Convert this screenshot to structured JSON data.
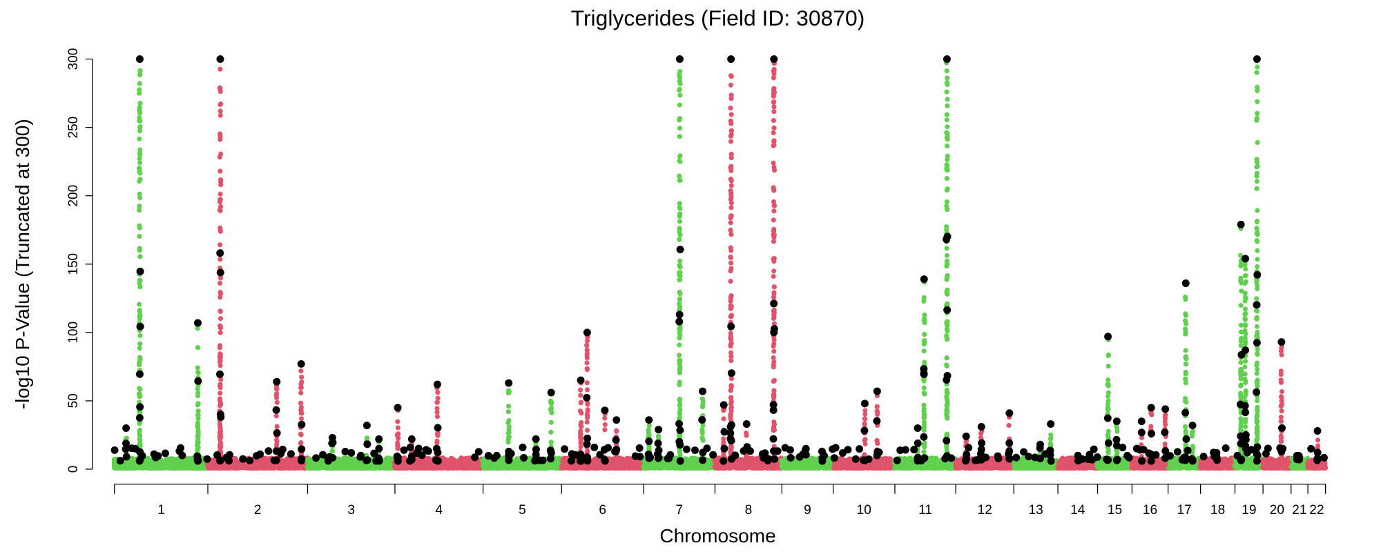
{
  "chart_data": {
    "type": "scatter",
    "subtype": "manhattan",
    "title": "Triglycerides (Field ID: 30870)",
    "xlabel": "Chromosome",
    "ylabel": "-log10 P-Value (Truncated at 300)",
    "ylim": [
      0,
      300
    ],
    "yticks": [
      0,
      50,
      100,
      150,
      200,
      250,
      300
    ],
    "grid": false,
    "colors": {
      "odd": "#61D04F",
      "even": "#DF536B",
      "lead": "#000000"
    },
    "chromosomes": [
      {
        "label": "1",
        "length": 233
      },
      {
        "label": "2",
        "length": 249
      },
      {
        "label": "3",
        "length": 218
      },
      {
        "label": "4",
        "length": 220
      },
      {
        "label": "5",
        "length": 196
      },
      {
        "label": "6",
        "length": 205
      },
      {
        "label": "7",
        "length": 178
      },
      {
        "label": "8",
        "length": 167
      },
      {
        "label": "9",
        "length": 128
      },
      {
        "label": "10",
        "length": 154
      },
      {
        "label": "11",
        "length": 152
      },
      {
        "label": "12",
        "length": 145
      },
      {
        "label": "13",
        "length": 110
      },
      {
        "label": "14",
        "length": 99
      },
      {
        "label": "15",
        "length": 86
      },
      {
        "label": "16",
        "length": 90
      },
      {
        "label": "17",
        "length": 81
      },
      {
        "label": "18",
        "length": 86
      },
      {
        "label": "19",
        "length": 70
      },
      {
        "label": "20",
        "length": 70
      },
      {
        "label": "21",
        "length": 42
      },
      {
        "label": "22",
        "length": 44
      }
    ],
    "peaks": [
      {
        "chr": 1,
        "pos": 63,
        "max": 300
      },
      {
        "chr": 1,
        "pos": 208,
        "max": 107
      },
      {
        "chr": 1,
        "pos": 29,
        "max": 30
      },
      {
        "chr": 2,
        "pos": 31,
        "max": 300
      },
      {
        "chr": 2,
        "pos": 172,
        "max": 64
      },
      {
        "chr": 2,
        "pos": 233,
        "max": 77
      },
      {
        "chr": 3,
        "pos": 62,
        "max": 23
      },
      {
        "chr": 3,
        "pos": 148,
        "max": 32
      },
      {
        "chr": 3,
        "pos": 178,
        "max": 22
      },
      {
        "chr": 4,
        "pos": 7,
        "max": 45
      },
      {
        "chr": 4,
        "pos": 42,
        "max": 22
      },
      {
        "chr": 4,
        "pos": 106,
        "max": 62
      },
      {
        "chr": 5,
        "pos": 64,
        "max": 63
      },
      {
        "chr": 5,
        "pos": 132,
        "max": 22
      },
      {
        "chr": 5,
        "pos": 170,
        "max": 56
      },
      {
        "chr": 6,
        "pos": 48,
        "max": 65
      },
      {
        "chr": 6,
        "pos": 64,
        "max": 100
      },
      {
        "chr": 6,
        "pos": 108,
        "max": 43
      },
      {
        "chr": 6,
        "pos": 137,
        "max": 36
      },
      {
        "chr": 7,
        "pos": 13,
        "max": 36
      },
      {
        "chr": 7,
        "pos": 37,
        "max": 29
      },
      {
        "chr": 7,
        "pos": 90,
        "max": 300
      },
      {
        "chr": 7,
        "pos": 147,
        "max": 57
      },
      {
        "chr": 8,
        "pos": 22,
        "max": 47
      },
      {
        "chr": 8,
        "pos": 40,
        "max": 300
      },
      {
        "chr": 8,
        "pos": 79,
        "max": 33
      },
      {
        "chr": 8,
        "pos": 147,
        "max": 300
      },
      {
        "chr": 9,
        "pos": 60,
        "max": 15
      },
      {
        "chr": 9,
        "pos": 100,
        "max": 13
      },
      {
        "chr": 10,
        "pos": 79,
        "max": 48
      },
      {
        "chr": 10,
        "pos": 110,
        "max": 57
      },
      {
        "chr": 11,
        "pos": 57,
        "max": 30
      },
      {
        "chr": 11,
        "pos": 73,
        "max": 139
      },
      {
        "chr": 11,
        "pos": 130,
        "max": 300
      },
      {
        "chr": 12,
        "pos": 26,
        "max": 24
      },
      {
        "chr": 12,
        "pos": 64,
        "max": 31
      },
      {
        "chr": 12,
        "pos": 134,
        "max": 41
      },
      {
        "chr": 13,
        "pos": 66,
        "max": 18
      },
      {
        "chr": 13,
        "pos": 92,
        "max": 33
      },
      {
        "chr": 14,
        "pos": 50,
        "max": 10
      },
      {
        "chr": 15,
        "pos": 26,
        "max": 97
      },
      {
        "chr": 15,
        "pos": 48,
        "max": 35
      },
      {
        "chr": 16,
        "pos": 24,
        "max": 35
      },
      {
        "chr": 16,
        "pos": 48,
        "max": 45
      },
      {
        "chr": 16,
        "pos": 83,
        "max": 44
      },
      {
        "chr": 17,
        "pos": 44,
        "max": 136
      },
      {
        "chr": 17,
        "pos": 61,
        "max": 32
      },
      {
        "chr": 18,
        "pos": 40,
        "max": 12
      },
      {
        "chr": 19,
        "pos": 15,
        "max": 179
      },
      {
        "chr": 19,
        "pos": 26,
        "max": 154
      },
      {
        "chr": 19,
        "pos": 55,
        "max": 300
      },
      {
        "chr": 20,
        "pos": 46,
        "max": 93
      },
      {
        "chr": 21,
        "pos": 20,
        "max": 8
      },
      {
        "chr": 22,
        "pos": 24,
        "max": 28
      }
    ]
  }
}
